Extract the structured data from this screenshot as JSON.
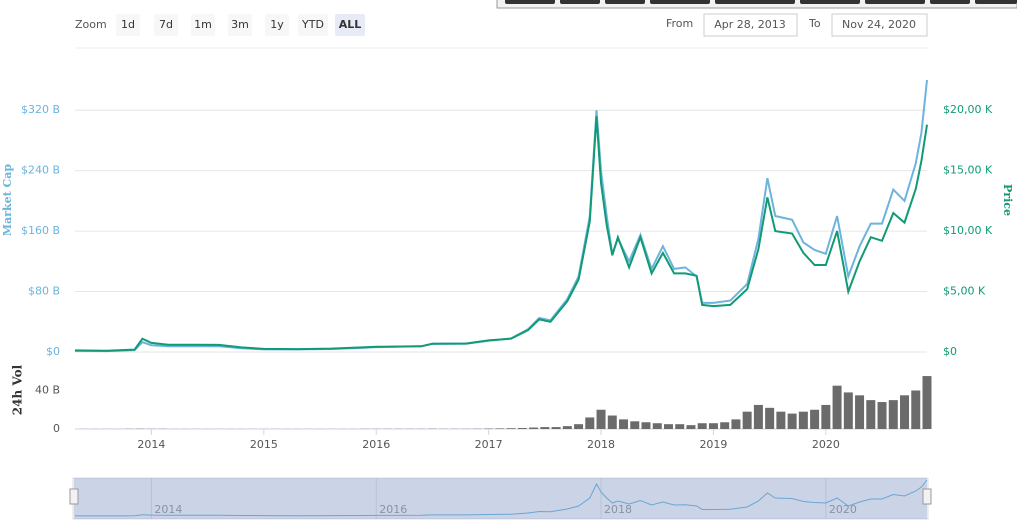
{
  "ui": {
    "zoom_label": "Zoom",
    "zoom_buttons": [
      "1d",
      "7d",
      "1m",
      "3m",
      "1y",
      "YTD",
      "ALL"
    ],
    "selected_zoom": "ALL",
    "from_label": "From",
    "from_date": "Apr 28, 2013",
    "to_label": "To",
    "to_date": "Nov 24, 2020"
  },
  "chart_data": [
    {
      "type": "line",
      "x": [
        2013.32,
        2013.6,
        2013.85,
        2013.92,
        2014.0,
        2014.15,
        2014.4,
        2014.6,
        2014.8,
        2015.0,
        2015.3,
        2015.6,
        2015.9,
        2016.0,
        2016.4,
        2016.5,
        2016.8,
        2017.0,
        2017.2,
        2017.35,
        2017.45,
        2017.55,
        2017.7,
        2017.8,
        2017.9,
        2017.96,
        2018.0,
        2018.05,
        2018.1,
        2018.15,
        2018.25,
        2018.35,
        2018.45,
        2018.55,
        2018.65,
        2018.75,
        2018.85,
        2018.9,
        2019.0,
        2019.15,
        2019.3,
        2019.4,
        2019.48,
        2019.55,
        2019.7,
        2019.8,
        2019.9,
        2020.0,
        2020.1,
        2020.2,
        2020.3,
        2020.4,
        2020.5,
        2020.6,
        2020.7,
        2020.8,
        2020.85,
        2020.9
      ],
      "xlim": [
        2013.32,
        2020.9
      ],
      "xticks": [
        2014,
        2015,
        2016,
        2017,
        2018,
        2019,
        2020
      ],
      "ylim": [
        0,
        360
      ],
      "yticks": [
        {
          "value": 0,
          "label": "$0"
        },
        {
          "value": 80,
          "label": "$80 B"
        },
        {
          "value": 160,
          "label": "$160 B"
        },
        {
          "value": 240,
          "label": "$240 B"
        },
        {
          "value": 320,
          "label": "$320 B"
        }
      ],
      "y2lim": [
        0,
        22500
      ],
      "y2ticks": [
        {
          "value": 0,
          "label": "$0"
        },
        {
          "value": 5000,
          "label": "$5,00 K"
        },
        {
          "value": 10000,
          "label": "$10,00 K"
        },
        {
          "value": 15000,
          "label": "$15,00 K"
        },
        {
          "value": 20000,
          "label": "$20,00 K"
        }
      ],
      "grid": true,
      "series": [
        {
          "name": "Market Cap",
          "color": "#6cb4dc",
          "values": [
            1.5,
            1.2,
            2.5,
            13,
            9,
            7.5,
            7.5,
            7.5,
            5,
            3.5,
            3.4,
            4,
            5.5,
            6.5,
            7.5,
            11,
            11,
            15,
            18,
            30,
            45,
            42,
            70,
            100,
            180,
            320,
            240,
            180,
            130,
            150,
            120,
            155,
            110,
            140,
            110,
            112,
            100,
            65,
            65,
            68,
            90,
            150,
            230,
            180,
            175,
            145,
            135,
            130,
            180,
            100,
            140,
            170,
            170,
            215,
            200,
            250,
            290,
            360
          ]
        },
        {
          "name": "Price",
          "color": "#119a75",
          "axis": "y2",
          "values": [
            135,
            100,
            200,
            1100,
            750,
            600,
            600,
            590,
            380,
            260,
            240,
            280,
            390,
            430,
            470,
            680,
            700,
            960,
            1100,
            1800,
            2700,
            2500,
            4200,
            6000,
            10800,
            19500,
            14000,
            10500,
            8000,
            9500,
            7000,
            9500,
            6500,
            8200,
            6500,
            6500,
            6300,
            3900,
            3800,
            3900,
            5200,
            8500,
            12800,
            10000,
            9800,
            8200,
            7200,
            7200,
            10000,
            5000,
            7500,
            9500,
            9200,
            11500,
            10700,
            13500,
            15800,
            18800
          ]
        }
      ]
    },
    {
      "type": "bar",
      "name": "24h Vol",
      "color": "#6b6b6b",
      "x": [
        2013.4,
        2013.5,
        2013.6,
        2013.7,
        2013.8,
        2013.9,
        2014.0,
        2014.1,
        2014.2,
        2014.3,
        2014.4,
        2014.5,
        2014.6,
        2014.7,
        2014.8,
        2014.9,
        2015.0,
        2015.1,
        2015.2,
        2015.3,
        2015.4,
        2015.5,
        2015.6,
        2015.7,
        2015.8,
        2015.9,
        2016.0,
        2016.1,
        2016.2,
        2016.3,
        2016.4,
        2016.5,
        2016.6,
        2016.7,
        2016.8,
        2016.9,
        2017.0,
        2017.1,
        2017.2,
        2017.3,
        2017.4,
        2017.5,
        2017.6,
        2017.7,
        2017.8,
        2017.9,
        2018.0,
        2018.1,
        2018.2,
        2018.3,
        2018.4,
        2018.5,
        2018.6,
        2018.7,
        2018.8,
        2018.9,
        2019.0,
        2019.1,
        2019.2,
        2019.3,
        2019.4,
        2019.5,
        2019.6,
        2019.7,
        2019.8,
        2019.9,
        2020.0,
        2020.1,
        2020.2,
        2020.3,
        2020.4,
        2020.5,
        2020.6,
        2020.7,
        2020.8,
        2020.9
      ],
      "values": [
        0.1,
        0.1,
        0.1,
        0.1,
        0.2,
        0.3,
        0.2,
        0.2,
        0.1,
        0.1,
        0.1,
        0.1,
        0.1,
        0.1,
        0.1,
        0.1,
        0.1,
        0.1,
        0.1,
        0.1,
        0.1,
        0.1,
        0.1,
        0.1,
        0.1,
        0.2,
        0.2,
        0.2,
        0.2,
        0.2,
        0.2,
        0.3,
        0.2,
        0.2,
        0.2,
        0.3,
        0.5,
        0.6,
        0.8,
        1,
        1.5,
        2,
        2,
        3,
        5,
        12,
        20,
        14,
        10,
        8,
        7,
        6,
        5,
        5,
        4,
        6,
        6,
        7,
        10,
        18,
        25,
        22,
        18,
        16,
        18,
        20,
        25,
        45,
        38,
        35,
        30,
        28,
        30,
        35,
        40,
        55
      ],
      "ylim": [
        0,
        80
      ],
      "yticks": [
        0,
        {
          "value": 40,
          "label": "40 B"
        }
      ]
    }
  ],
  "navigator": {
    "xticks": [
      2014,
      2016,
      2018,
      2020
    ]
  }
}
